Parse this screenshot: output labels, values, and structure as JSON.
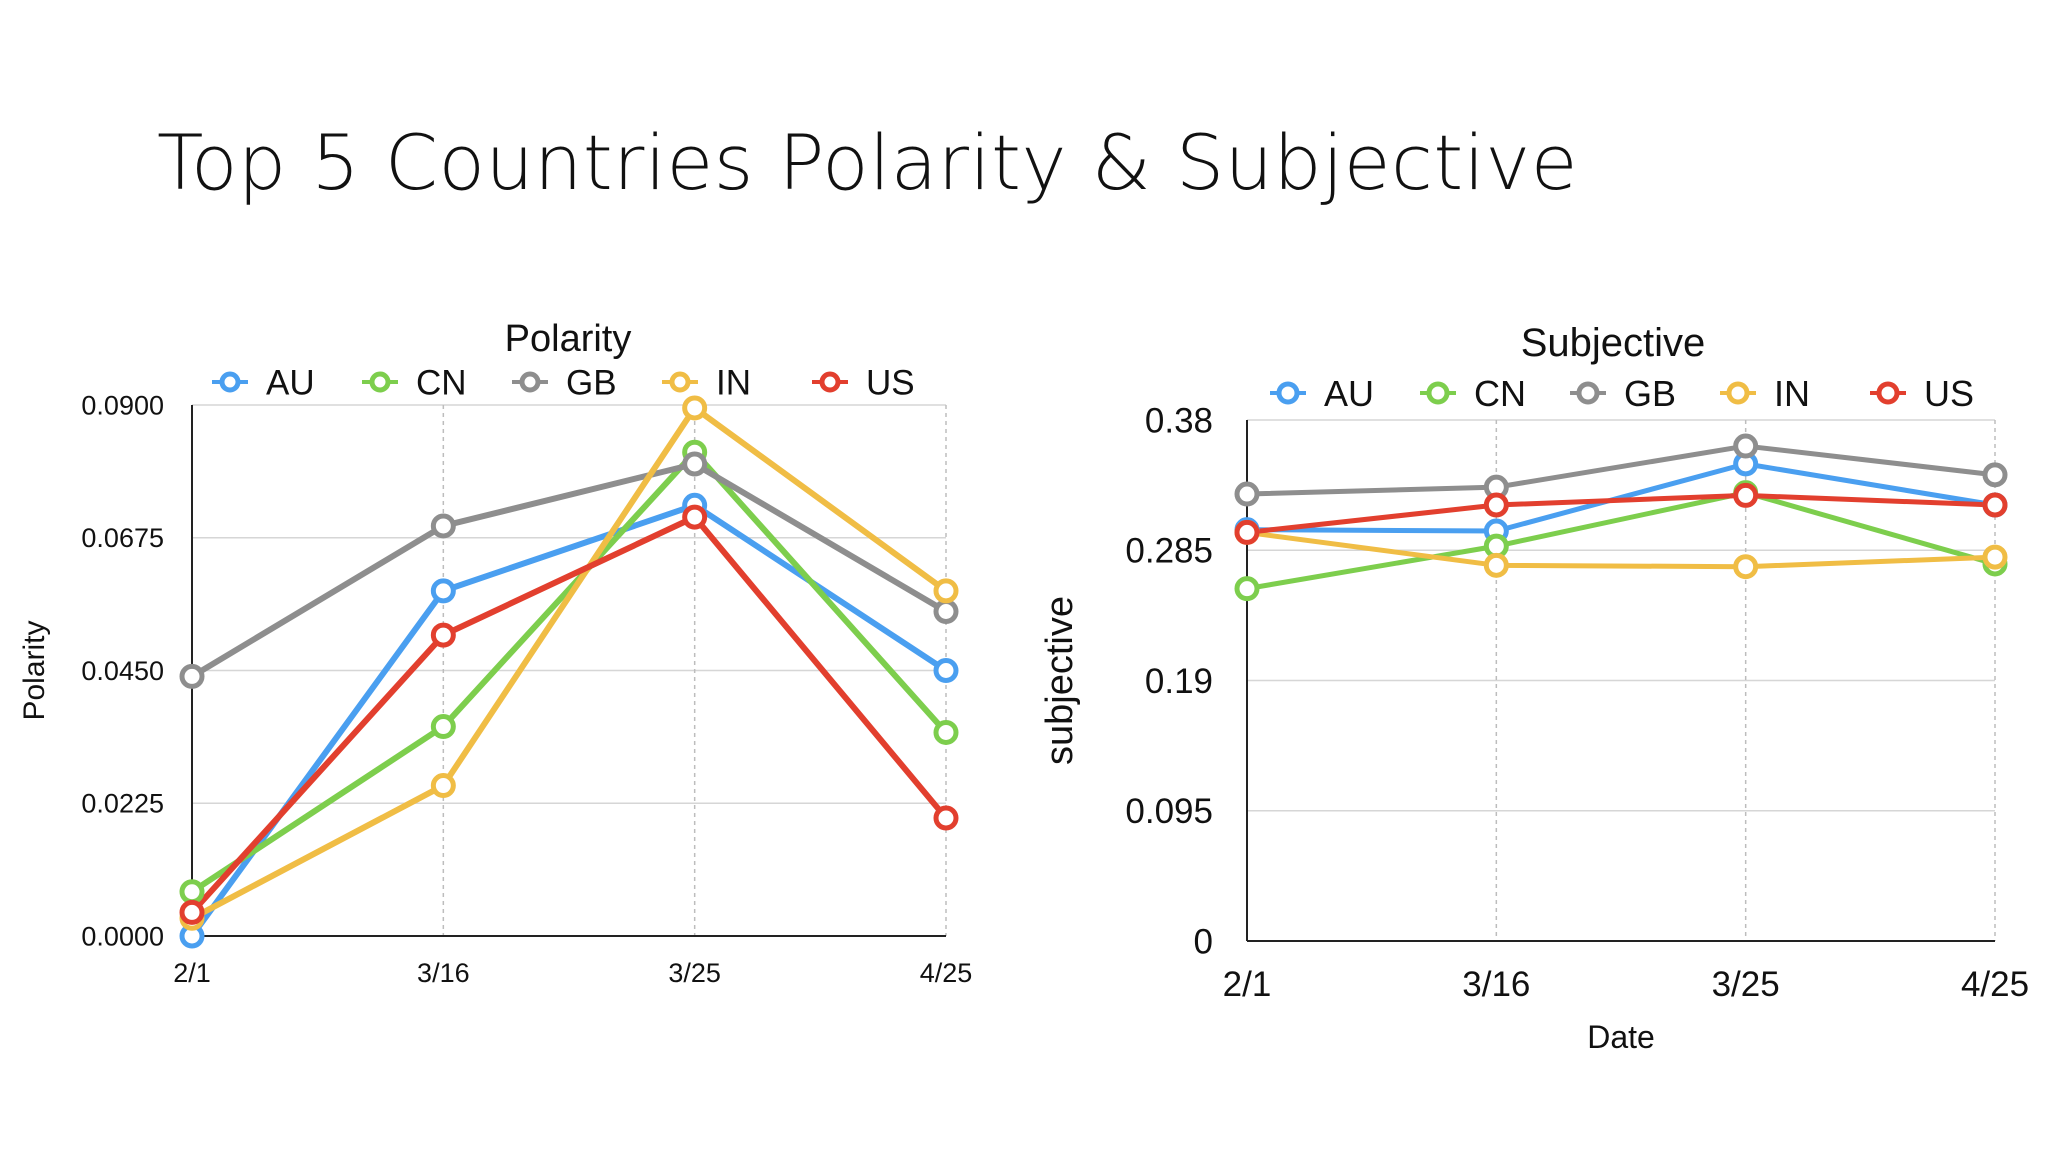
{
  "slide": {
    "title": "Top 5 Countries Polarity & Subjective"
  },
  "chart_data": [
    {
      "type": "line",
      "title": "Polarity",
      "xlabel": "",
      "ylabel": "Polarity",
      "categories": [
        "2/1",
        "3/16",
        "3/25",
        "4/25"
      ],
      "ylim": [
        0,
        0.09
      ],
      "yticks": [
        "0.0000",
        "0.0225",
        "0.0450",
        "0.0675",
        "0.0900"
      ],
      "grid": true,
      "legend": "top",
      "series": [
        {
          "name": "AU",
          "color": "#4a9ff0",
          "values": [
            0.0,
            0.0585,
            0.073,
            0.045
          ]
        },
        {
          "name": "CN",
          "color": "#7dce4d",
          "values": [
            0.0075,
            0.0355,
            0.082,
            0.0345
          ]
        },
        {
          "name": "GB",
          "color": "#8e8e8e",
          "values": [
            0.044,
            0.0695,
            0.08,
            0.055
          ]
        },
        {
          "name": "IN",
          "color": "#f0bd45",
          "values": [
            0.003,
            0.0255,
            0.0895,
            0.0585
          ]
        },
        {
          "name": "US",
          "color": "#e23f2e",
          "values": [
            0.004,
            0.051,
            0.071,
            0.02
          ]
        }
      ]
    },
    {
      "type": "line",
      "title": "Subjective",
      "xlabel": "Date",
      "ylabel": "subjective",
      "categories": [
        "2/1",
        "3/16",
        "3/25",
        "4/25"
      ],
      "ylim": [
        0,
        0.38
      ],
      "yticks": [
        "0",
        "0.095",
        "0.19",
        "0.285",
        "0.38"
      ],
      "grid": true,
      "legend": "top",
      "series": [
        {
          "name": "AU",
          "color": "#4a9ff0",
          "values": [
            0.3,
            0.299,
            0.348,
            0.318
          ]
        },
        {
          "name": "CN",
          "color": "#7dce4d",
          "values": [
            0.257,
            0.288,
            0.327,
            0.275
          ]
        },
        {
          "name": "GB",
          "color": "#8e8e8e",
          "values": [
            0.326,
            0.331,
            0.361,
            0.34
          ]
        },
        {
          "name": "IN",
          "color": "#f0bd45",
          "values": [
            0.298,
            0.274,
            0.273,
            0.28
          ]
        },
        {
          "name": "US",
          "color": "#e23f2e",
          "values": [
            0.298,
            0.318,
            0.325,
            0.318
          ]
        }
      ]
    }
  ]
}
